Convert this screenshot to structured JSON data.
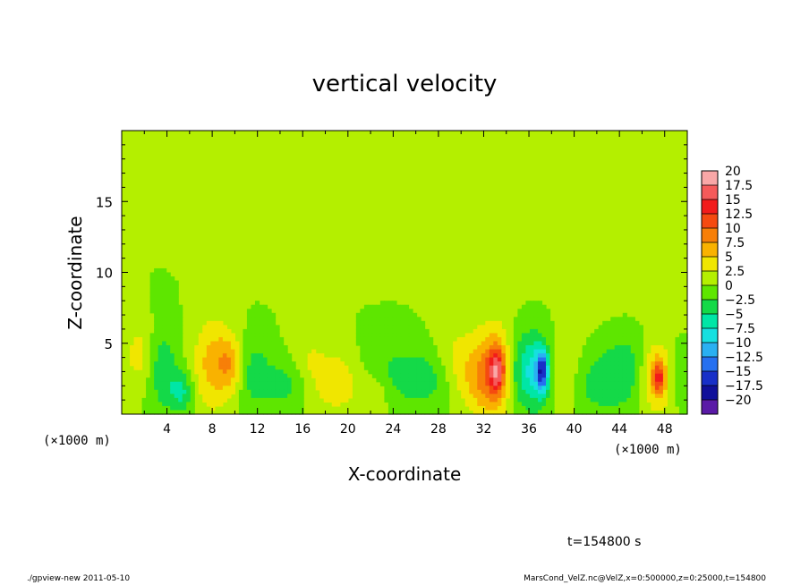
{
  "chart_data": {
    "type": "heatmap",
    "title": "vertical velocity",
    "xlabel": "X-coordinate",
    "ylabel": "Z-coordinate",
    "x_unit_label": "(×1000 m)",
    "x_unit_label_right": "(×1000 m)",
    "xlim": [
      0,
      50
    ],
    "ylim": [
      0,
      20
    ],
    "x_ticks": [
      "4",
      "8",
      "12",
      "16",
      "20",
      "24",
      "28",
      "32",
      "36",
      "40",
      "44",
      "48"
    ],
    "x_tick_values": [
      4,
      8,
      12,
      16,
      20,
      24,
      28,
      32,
      36,
      40,
      44,
      48
    ],
    "y_ticks": [
      "5",
      "10",
      "15"
    ],
    "y_tick_values": [
      5,
      10,
      15
    ],
    "colorbar_labels": [
      "20",
      "17.5",
      "15",
      "12.5",
      "10",
      "7.5",
      "5",
      "2.5",
      "0",
      "−2.5",
      "−5",
      "−7.5",
      "−10",
      "−12.5",
      "−15",
      "−17.5",
      "−20"
    ],
    "colorbar_colors": [
      "#f9a7a7",
      "#f55a5a",
      "#f21b1b",
      "#f54a10",
      "#f77f08",
      "#f9b200",
      "#f0e600",
      "#b4ef00",
      "#5ee600",
      "#14d948",
      "#00e6a6",
      "#16e0e0",
      "#2ab0f2",
      "#2670f0",
      "#1830c8",
      "#10109a",
      "#5a1aa6"
    ],
    "background_value": 0,
    "features": [
      {
        "x": 1.5,
        "z": 4.2,
        "sx": 0.9,
        "sz": 1.6,
        "value": 3.5
      },
      {
        "x": 3.7,
        "z": 3.0,
        "sx": 0.9,
        "sz": 2.0,
        "value": -4.5
      },
      {
        "x": 5.3,
        "z": 1.6,
        "sx": 0.7,
        "sz": 1.0,
        "value": -5.5
      },
      {
        "x": 8.0,
        "z": 3.5,
        "sx": 1.2,
        "sz": 2.3,
        "value": 6.0
      },
      {
        "x": 9.5,
        "z": 3.6,
        "sx": 0.7,
        "sz": 1.4,
        "value": 5.0
      },
      {
        "x": 11.8,
        "z": 2.8,
        "sx": 0.9,
        "sz": 1.7,
        "value": -3.5
      },
      {
        "x": 14.5,
        "z": 2.2,
        "sx": 1.5,
        "sz": 1.3,
        "value": -3.5
      },
      {
        "x": 16.3,
        "z": 3.8,
        "sx": 1.1,
        "sz": 1.5,
        "value": 2.5
      },
      {
        "x": 19.0,
        "z": 2.3,
        "sx": 1.6,
        "sz": 1.6,
        "value": 4.5
      },
      {
        "x": 22.3,
        "z": 1.5,
        "sx": 0.9,
        "sz": 1.1,
        "value": 3.0
      },
      {
        "x": 23.5,
        "z": 3.0,
        "sx": 2.2,
        "sz": 1.6,
        "value": -2.5
      },
      {
        "x": 27.0,
        "z": 2.4,
        "sx": 1.8,
        "sz": 1.4,
        "value": -3.5
      },
      {
        "x": 29.5,
        "z": 3.8,
        "sx": 1.3,
        "sz": 2.0,
        "value": 3.0
      },
      {
        "x": 31.5,
        "z": 2.5,
        "sx": 1.2,
        "sz": 1.8,
        "value": 4.5
      },
      {
        "x": 33.0,
        "z": 3.0,
        "sx": 1.1,
        "sz": 2.3,
        "value": 8.0
      },
      {
        "x": 33.2,
        "z": 3.1,
        "sx": 0.45,
        "sz": 1.0,
        "value": 10.0
      },
      {
        "x": 35.3,
        "z": 3.0,
        "sx": 1.0,
        "sz": 2.0,
        "value": -5.0
      },
      {
        "x": 36.8,
        "z": 3.1,
        "sx": 0.8,
        "sz": 1.8,
        "value": -7.0
      },
      {
        "x": 37.2,
        "z": 3.0,
        "sx": 0.35,
        "sz": 0.9,
        "value": -12.0
      },
      {
        "x": 39.5,
        "z": 2.8,
        "sx": 1.1,
        "sz": 1.8,
        "value": 3.0
      },
      {
        "x": 41.5,
        "z": 2.2,
        "sx": 1.8,
        "sz": 1.5,
        "value": -3.5
      },
      {
        "x": 44.5,
        "z": 3.2,
        "sx": 1.5,
        "sz": 2.0,
        "value": -4.0
      },
      {
        "x": 47.3,
        "z": 2.6,
        "sx": 1.1,
        "sz": 1.8,
        "value": 6.5
      },
      {
        "x": 47.5,
        "z": 2.6,
        "sx": 0.4,
        "sz": 0.8,
        "value": 8.5
      },
      {
        "x": 49.0,
        "z": 2.8,
        "sx": 0.8,
        "sz": 1.5,
        "value": -2.8
      },
      {
        "x": 16.0,
        "z": 15.0,
        "sx": 4.5,
        "sz": 3.0,
        "value": 0.9
      },
      {
        "x": 33.0,
        "z": 12.0,
        "sx": 3.5,
        "sz": 3.0,
        "value": 0.8
      },
      {
        "x": 25.0,
        "z": 16.5,
        "sx": 4.0,
        "sz": 2.5,
        "value": 0.6
      },
      {
        "x": 44.0,
        "z": 8.0,
        "sx": 3.5,
        "sz": 2.5,
        "value": 0.7
      }
    ],
    "grid": false,
    "legend": "colorbar-right"
  },
  "time_label": "t=154800 s",
  "footer": {
    "left": "./gpview-new   2011-05-10",
    "right": "MarsCond_VelZ.nc@VelZ,x=0:500000,z=0:25000,t=154800"
  }
}
